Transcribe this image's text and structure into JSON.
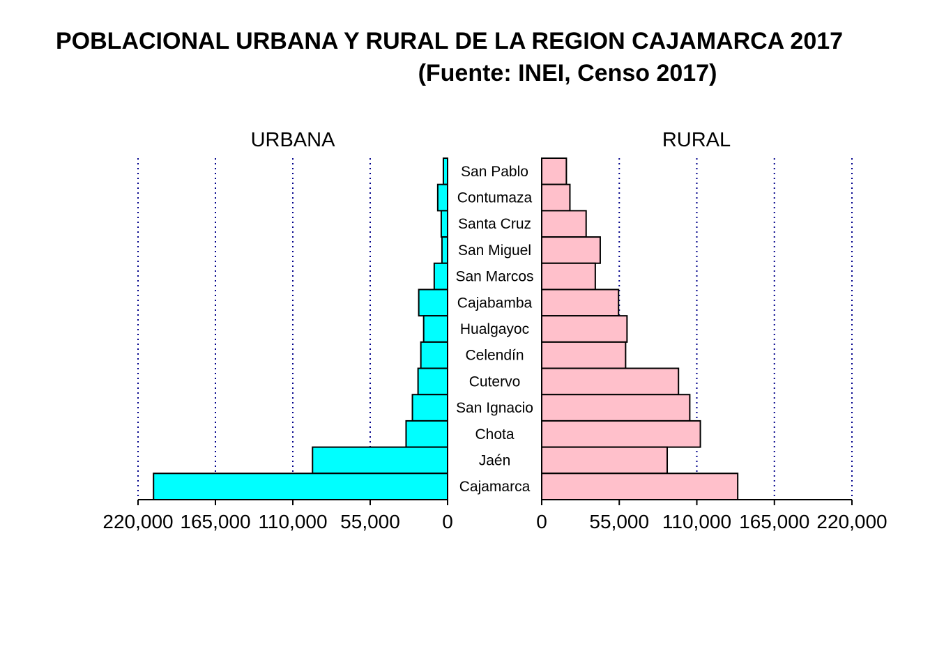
{
  "chart_data": {
    "type": "bar",
    "title": "POBLACIONAL URBANA Y RURAL DE LA REGION CAJAMARCA 2017",
    "subtitle": "(Fuente: INEI, Censo 2017)",
    "left_label": "URBANA",
    "right_label": "RURAL",
    "categories": [
      "San Pablo",
      "Contumaza",
      "Santa Cruz",
      "San Miguel",
      "San Marcos",
      "Cajabamba",
      "Hualgayoc",
      "Celendín",
      "Cutervo",
      "San Ignacio",
      "Chota",
      "Jaén",
      "Cajamarca"
    ],
    "series": [
      {
        "name": "URBANA",
        "values": [
          3000,
          7000,
          4500,
          4000,
          9500,
          20500,
          17000,
          19000,
          21000,
          25000,
          29500,
          96000,
          209000
        ]
      },
      {
        "name": "RURAL",
        "values": [
          17500,
          20000,
          31500,
          41500,
          38000,
          54500,
          60500,
          59500,
          97000,
          105000,
          112500,
          89000,
          139000
        ]
      }
    ],
    "left_ticks": [
      "220,000",
      "165,000",
      "110,000",
      "55,000",
      "0"
    ],
    "right_ticks": [
      "0",
      "55,000",
      "110,000",
      "165,000",
      "220,000"
    ],
    "xlim": [
      0,
      220000
    ],
    "grid": true,
    "colors": {
      "urban": "#00FFFF",
      "rural": "#FFC0CB",
      "grid": "#00008B",
      "outline": "#000000"
    }
  }
}
